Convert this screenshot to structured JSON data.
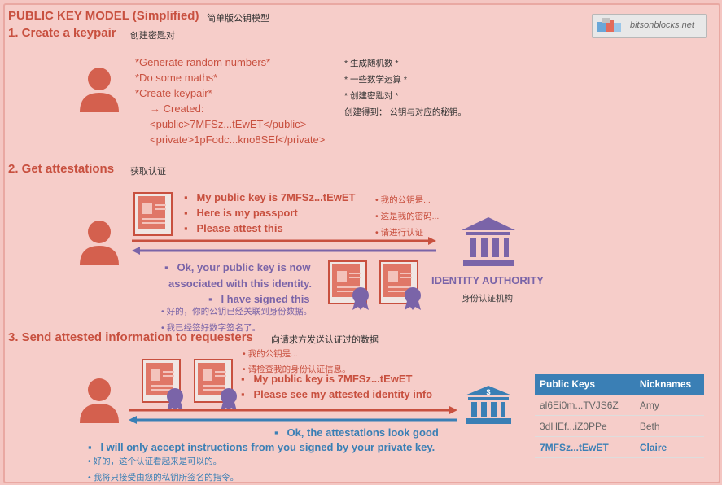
{
  "header": {
    "title": "PUBLIC KEY MODEL (Simplified)",
    "title_cn": "简单版公钥模型",
    "logo_text": "bitsonblocks.net"
  },
  "section1": {
    "heading": "1.   Create a keypair",
    "heading_cn": "创建密匙对",
    "steps": [
      "*Generate random numbers*",
      "*Do some maths*",
      "*Create keypair*"
    ],
    "created_label": "→ Created:",
    "public_line": "<public>7MFSz...tEwET</public>",
    "private_line": "<private>1pFodc...kno8SEf</private>",
    "notes_cn": [
      "* 生成随机数 *",
      "* 一些数学运算 *",
      "* 创建密匙对 *",
      "创建得到： 公钥与对应的秘钥。"
    ]
  },
  "section2": {
    "heading": "2.   Get attestations",
    "heading_cn": "获取认证",
    "requests": [
      "My public key is 7MFSz...tEwET",
      "Here is my passport",
      "Please attest this"
    ],
    "requests_cn": [
      "• 我的公钥是...",
      "• 这是我的密码...",
      "• 请进行认证"
    ],
    "reply_line1": "Ok, your public key is now",
    "reply_line2": "associated with this identity.",
    "reply_signed": "I have signed this",
    "reply_cn": [
      "• 好的，你的公钥已经关联到身份数据。",
      "• 我已经签好数字签名了。"
    ],
    "authority": "IDENTITY AUTHORITY",
    "authority_cn": "身份认证机构"
  },
  "section3": {
    "heading": "3.   Send attested information to requesters",
    "heading_cn": "向请求方发送认证过的数据",
    "notes_cn": [
      "• 我的公钥是...",
      "• 请检查我的身份认证信息。"
    ],
    "requests": [
      "My public key is 7MFSz...tEwET",
      "Please see my attested identity info"
    ],
    "reply": "Ok, the attestations look good",
    "instruction": "I will only accept instructions from you signed by your private key.",
    "reply_cn": [
      "• 好的，这个认证看起来是可以的。",
      "• 我将只接受由您的私钥所签名的指令。"
    ],
    "table": {
      "headers": [
        "Public Keys",
        "Nicknames"
      ],
      "rows": [
        [
          "al6Ei0m...TVJS6Z",
          "Amy"
        ],
        [
          "3dHEf...iZ0PPe",
          "Beth"
        ],
        [
          "7MFSz...tEwET",
          "Claire"
        ]
      ]
    }
  },
  "colors": {
    "red": "#c8503f",
    "purple": "#7a64a8",
    "blue": "#3a7fb5",
    "background": "#f6cdc9"
  }
}
